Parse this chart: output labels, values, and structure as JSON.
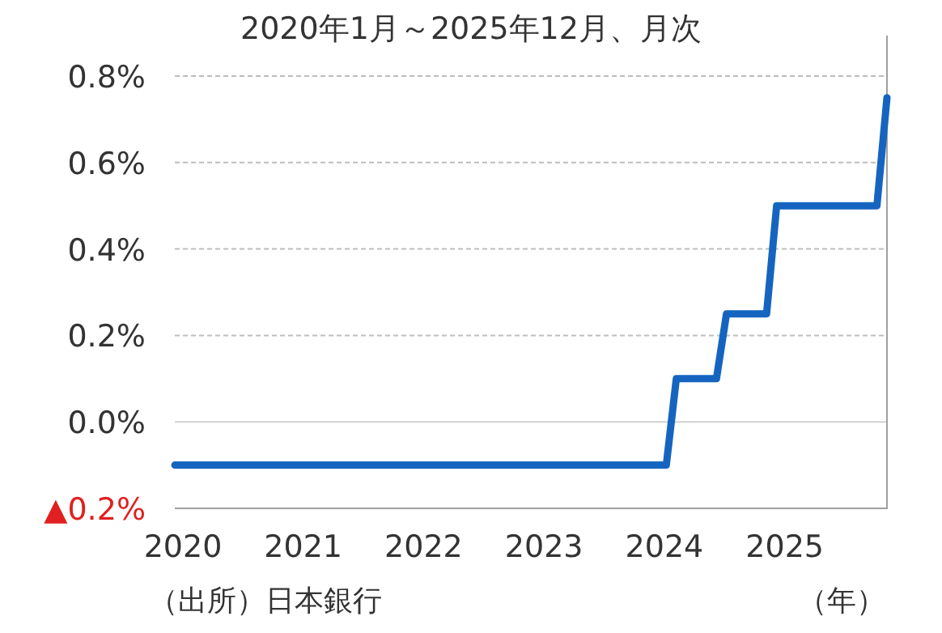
{
  "chart_data": {
    "type": "line",
    "title": "2020年1月～2025年12月、月次",
    "xlabel": "（年）",
    "annotations": [
      "（出所）日本銀行"
    ],
    "x": [
      "2020-01",
      "2020-02",
      "2020-03",
      "2020-04",
      "2020-05",
      "2020-06",
      "2020-07",
      "2020-08",
      "2020-09",
      "2020-10",
      "2020-11",
      "2020-12",
      "2021-01",
      "2021-02",
      "2021-03",
      "2021-04",
      "2021-05",
      "2021-06",
      "2021-07",
      "2021-08",
      "2021-09",
      "2021-10",
      "2021-11",
      "2021-12",
      "2022-01",
      "2022-02",
      "2022-03",
      "2022-04",
      "2022-05",
      "2022-06",
      "2022-07",
      "2022-08",
      "2022-09",
      "2022-10",
      "2022-11",
      "2022-12",
      "2023-01",
      "2023-02",
      "2023-03",
      "2023-04",
      "2023-05",
      "2023-06",
      "2023-07",
      "2023-08",
      "2023-09",
      "2023-10",
      "2023-11",
      "2023-12",
      "2024-01",
      "2024-02",
      "2024-03",
      "2024-04",
      "2024-05",
      "2024-06",
      "2024-07",
      "2024-08",
      "2024-09",
      "2024-10",
      "2024-11",
      "2024-12",
      "2025-01",
      "2025-02",
      "2025-03",
      "2025-04",
      "2025-05",
      "2025-06",
      "2025-07",
      "2025-08",
      "2025-09",
      "2025-10",
      "2025-11",
      "2025-12"
    ],
    "series": [
      {
        "color": "#1565c0",
        "values": [
          -0.1,
          -0.1,
          -0.1,
          -0.1,
          -0.1,
          -0.1,
          -0.1,
          -0.1,
          -0.1,
          -0.1,
          -0.1,
          -0.1,
          -0.1,
          -0.1,
          -0.1,
          -0.1,
          -0.1,
          -0.1,
          -0.1,
          -0.1,
          -0.1,
          -0.1,
          -0.1,
          -0.1,
          -0.1,
          -0.1,
          -0.1,
          -0.1,
          -0.1,
          -0.1,
          -0.1,
          -0.1,
          -0.1,
          -0.1,
          -0.1,
          -0.1,
          -0.1,
          -0.1,
          -0.1,
          -0.1,
          -0.1,
          -0.1,
          -0.1,
          -0.1,
          -0.1,
          -0.1,
          -0.1,
          -0.1,
          -0.1,
          -0.1,
          0.1,
          0.1,
          0.1,
          0.1,
          0.1,
          0.25,
          0.25,
          0.25,
          0.25,
          0.25,
          0.5,
          0.5,
          0.5,
          0.5,
          0.5,
          0.5,
          0.5,
          0.5,
          0.5,
          0.5,
          0.5,
          0.75
        ]
      }
    ],
    "xlim": [
      "2020-01",
      "2025-12"
    ],
    "xticks": [
      {
        "value": "2020-01",
        "label": "2020"
      },
      {
        "value": "2021-01",
        "label": "2021"
      },
      {
        "value": "2022-01",
        "label": "2022"
      },
      {
        "value": "2023-01",
        "label": "2023"
      },
      {
        "value": "2024-01",
        "label": "2024"
      },
      {
        "value": "2025-01",
        "label": "2025"
      }
    ],
    "ylim": [
      -0.2,
      0.8
    ],
    "yticks": [
      {
        "value": -0.2,
        "label": "▲0.2%"
      },
      {
        "value": 0,
        "label": "0.0%"
      },
      {
        "value": 0.2,
        "label": "0.2%"
      },
      {
        "value": 0.4,
        "label": "0.4%"
      },
      {
        "value": 0.6,
        "label": "0.6%"
      },
      {
        "value": 0.8,
        "label": "0.8%"
      }
    ],
    "grid": "y",
    "marker": "none",
    "line_style": "solid"
  }
}
